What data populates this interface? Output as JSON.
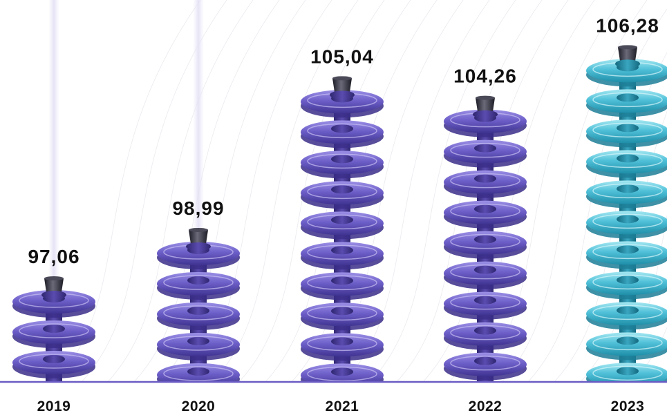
{
  "chart_data": {
    "type": "bar",
    "categories": [
      "2019",
      "2020",
      "2021",
      "2022",
      "2023"
    ],
    "values": [
      97.06,
      98.99,
      105.04,
      104.26,
      106.28
    ],
    "value_labels": [
      "97,06",
      "98,99",
      "105,04",
      "104,26",
      "106,28"
    ],
    "title": "",
    "xlabel": "",
    "ylabel": "",
    "colors": {
      "default_bar": "#6a5bc4",
      "highlight_bar": "#4fbfd6",
      "highlight_index": 4,
      "baseline": "#6a5bc4",
      "cap": "#2c2c3c"
    }
  }
}
